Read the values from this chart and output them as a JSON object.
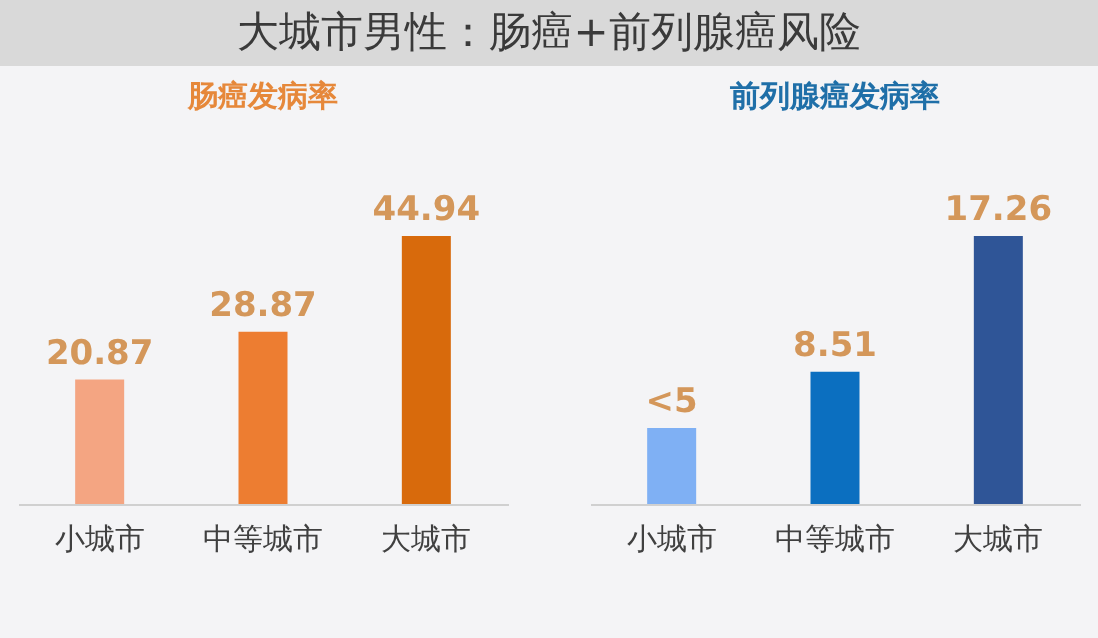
{
  "chart_data": [
    {
      "type": "bar",
      "title": "大城市男性：肠癌+前列腺癌风险",
      "subtitle": "肠癌发病率",
      "categories": [
        "小城市",
        "中等城市",
        "大城市"
      ],
      "values": [
        20.87,
        28.87,
        44.94
      ],
      "colors": [
        "#f4a582",
        "#ed7d31",
        "#d86a0c"
      ],
      "data_labels": true,
      "tick_labels": "x"
    },
    {
      "type": "bar",
      "subtitle": "前列腺癌发病率",
      "categories": [
        "小城市",
        "中等城市",
        "大城市"
      ],
      "values": [
        4.9,
        8.51,
        17.26
      ],
      "value_labels": [
        "<5",
        "8.51",
        "17.26"
      ],
      "colors": [
        "#7fb0f4",
        "#0b6fc0",
        "#2f5597"
      ],
      "tick_labels": "x"
    }
  ]
}
